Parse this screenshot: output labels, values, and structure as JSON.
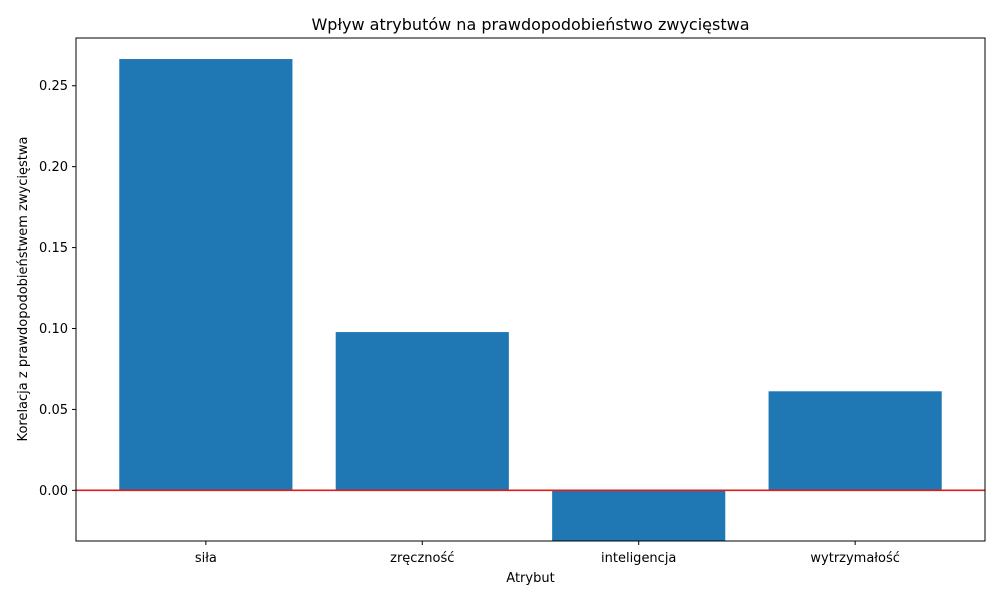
{
  "chart_data": {
    "type": "bar",
    "title": "Wpływ atrybutów na prawdopodobieństwo zwycięstwa",
    "xlabel": "Atrybut",
    "ylabel": "Korelacja z prawdopodobieństwem zwycięstwa",
    "categories": [
      "siła",
      "zręczność",
      "inteligencja",
      "wytrzymałość"
    ],
    "values": [
      0.2665,
      0.0978,
      -0.0314,
      0.0612
    ],
    "ylim": [
      -0.0313,
      0.2795
    ],
    "yticks": [
      0.0,
      0.05,
      0.1,
      0.15,
      0.2,
      0.25
    ],
    "ytick_labels": [
      "0.00",
      "0.05",
      "0.10",
      "0.15",
      "0.20",
      "0.25"
    ],
    "bar_color": "#1f77b4",
    "reference_line": {
      "y": 0,
      "color": "#e31a1c"
    },
    "grid": false,
    "legend": "none"
  }
}
